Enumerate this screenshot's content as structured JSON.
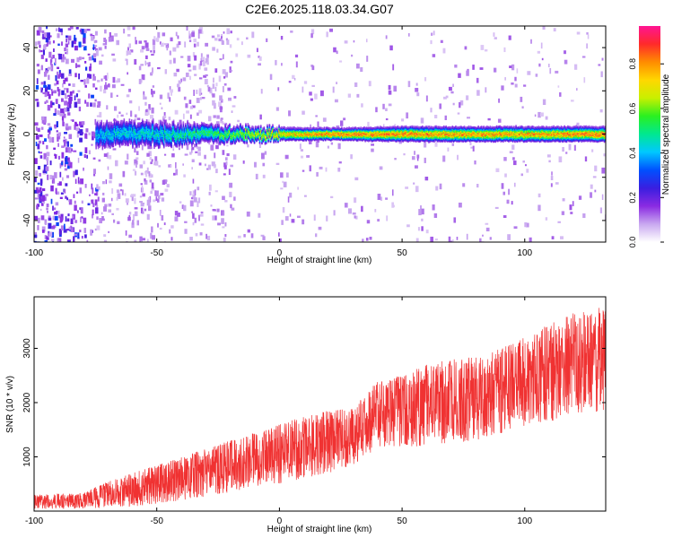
{
  "chart_data": [
    {
      "type": "heatmap",
      "title": "C2E6.2025.118.03.34.G07",
      "xlabel": "Height of straight line (km)",
      "ylabel": "Frequency (Hz)",
      "xlim": [
        -100,
        133
      ],
      "ylim": [
        -50,
        50
      ],
      "xticks": [
        -100,
        -50,
        0,
        50,
        100
      ],
      "yticks": [
        -40,
        -20,
        0,
        20,
        40
      ],
      "colorbar": {
        "label": "Normalized spectral amplitude",
        "range": [
          0,
          0.97
        ],
        "ticks": [
          0.0,
          0.2,
          0.4,
          0.6,
          0.8
        ],
        "colormap": [
          "#ffffff",
          "#c9a8f0",
          "#8a2be2",
          "#3a1ee0",
          "#0050ff",
          "#00c8ff",
          "#00e890",
          "#2af020",
          "#c8f000",
          "#ffd700",
          "#ff8c00",
          "#ff2a2a",
          "#ff1493"
        ]
      },
      "ridge": {
        "description_free": true,
        "frequency_center": 0,
        "onset_x": -75,
        "profile": [
          {
            "x": -75,
            "halfwidth": 5,
            "peak": 0.45
          },
          {
            "x": -50,
            "halfwidth": 4.5,
            "peak": 0.5
          },
          {
            "x": -25,
            "halfwidth": 3,
            "peak": 0.6
          },
          {
            "x": 0,
            "halfwidth": 2.2,
            "peak": 0.8
          },
          {
            "x": 25,
            "halfwidth": 2,
            "peak": 0.9
          },
          {
            "x": 50,
            "halfwidth": 2.5,
            "peak": 0.88
          },
          {
            "x": 100,
            "halfwidth": 2.5,
            "peak": 0.85
          },
          {
            "x": 133,
            "halfwidth": 2.5,
            "peak": 0.9
          }
        ]
      },
      "grid": false,
      "legend": "right"
    },
    {
      "type": "line",
      "title": "",
      "xlabel": "Height of straight line (km)",
      "ylabel": "SNR (10 * v/v)",
      "xlim": [
        -100,
        133
      ],
      "ylim": [
        0,
        3950
      ],
      "xticks": [
        -100,
        -50,
        0,
        50,
        100
      ],
      "yticks": [
        1000,
        2000,
        3000
      ],
      "color": "#f03232",
      "series": [
        {
          "envelope": [
            {
              "x": -100,
              "low": 30,
              "high": 300
            },
            {
              "x": -90,
              "low": 40,
              "high": 320
            },
            {
              "x": -80,
              "low": 50,
              "high": 330
            },
            {
              "x": -70,
              "low": 60,
              "high": 550
            },
            {
              "x": -60,
              "low": 80,
              "high": 700
            },
            {
              "x": -50,
              "low": 120,
              "high": 850
            },
            {
              "x": -40,
              "low": 200,
              "high": 1000
            },
            {
              "x": -30,
              "low": 250,
              "high": 1150
            },
            {
              "x": -20,
              "low": 350,
              "high": 1300
            },
            {
              "x": -10,
              "low": 450,
              "high": 1450
            },
            {
              "x": 0,
              "low": 500,
              "high": 1600
            },
            {
              "x": 10,
              "low": 600,
              "high": 1750
            },
            {
              "x": 20,
              "low": 700,
              "high": 1850
            },
            {
              "x": 30,
              "low": 850,
              "high": 1900
            },
            {
              "x": 40,
              "low": 1150,
              "high": 2400
            },
            {
              "x": 50,
              "low": 1150,
              "high": 2500
            },
            {
              "x": 60,
              "low": 1200,
              "high": 2700
            },
            {
              "x": 70,
              "low": 1250,
              "high": 2800
            },
            {
              "x": 80,
              "low": 1300,
              "high": 2850
            },
            {
              "x": 90,
              "low": 1400,
              "high": 3000
            },
            {
              "x": 100,
              "low": 1550,
              "high": 3200
            },
            {
              "x": 110,
              "low": 1650,
              "high": 3450
            },
            {
              "x": 120,
              "low": 1750,
              "high": 3650
            },
            {
              "x": 133,
              "low": 1850,
              "high": 3800
            }
          ]
        }
      ],
      "grid": false
    }
  ]
}
